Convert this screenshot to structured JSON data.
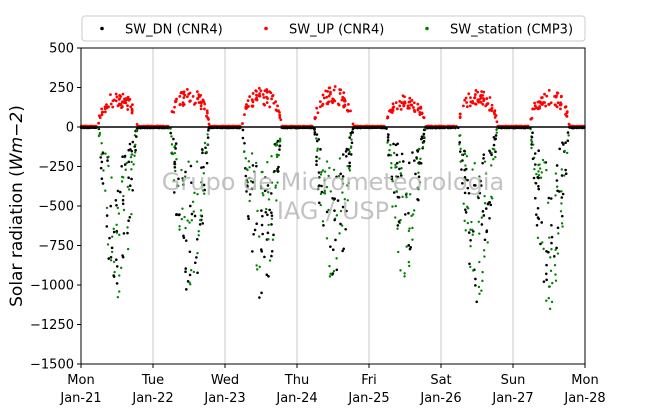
{
  "chart_data": {
    "type": "scatter",
    "title": "",
    "xlabel": "",
    "ylabel": "Solar radiation (Wm−2)",
    "ylabel_parts": {
      "prefix": "Solar radiation (",
      "unit": "Wm",
      "sep": "−",
      "exp": "2",
      "suffix": ")"
    },
    "ylim": [
      -1500,
      500
    ],
    "yticks": [
      "500",
      "250",
      "0",
      "−250",
      "−500",
      "−750",
      "−1000",
      "−1250",
      "−1500"
    ],
    "ytick_values": [
      500,
      250,
      0,
      -250,
      -500,
      -750,
      -1000,
      -1250,
      -1500
    ],
    "xlim": [
      "Jan-21 00:00",
      "Jan-28 00:00"
    ],
    "xticks": [
      {
        "day": "Mon",
        "date": "Jan-21"
      },
      {
        "day": "Tue",
        "date": "Jan-22"
      },
      {
        "day": "Wed",
        "date": "Jan-23"
      },
      {
        "day": "Thu",
        "date": "Jan-24"
      },
      {
        "day": "Fri",
        "date": "Jan-25"
      },
      {
        "day": "Sat",
        "date": "Jan-26"
      },
      {
        "day": "Sun",
        "date": "Jan-27"
      },
      {
        "day": "Mon",
        "date": "Jan-28"
      }
    ],
    "grid": "vertical",
    "legend_position": "top",
    "watermark": [
      "Grupo de Micrometeorologia",
      "IAG / USP"
    ],
    "series": [
      {
        "name": "SW_DN (CNR4)",
        "color": "#000000",
        "description": "daily negative arches, daytime values down to about −1150",
        "daily_min": [
          -1080,
          -1150,
          -1130,
          -1120,
          -840,
          -1130,
          -1090
        ]
      },
      {
        "name": "SW_UP (CNR4)",
        "color": "#ff0000",
        "description": "daily positive arches, peaks near 200–260",
        "daily_max": [
          225,
          245,
          250,
          260,
          200,
          240,
          245
        ]
      },
      {
        "name": "SW_station (CMP3)",
        "color": "#008000",
        "description": "daily negative arches similar to SW_DN",
        "daily_min": [
          -1100,
          -1000,
          -1080,
          -1000,
          -980,
          -1100,
          -1160
        ]
      }
    ],
    "reference_line": {
      "y": 0,
      "color": "#000000"
    }
  }
}
